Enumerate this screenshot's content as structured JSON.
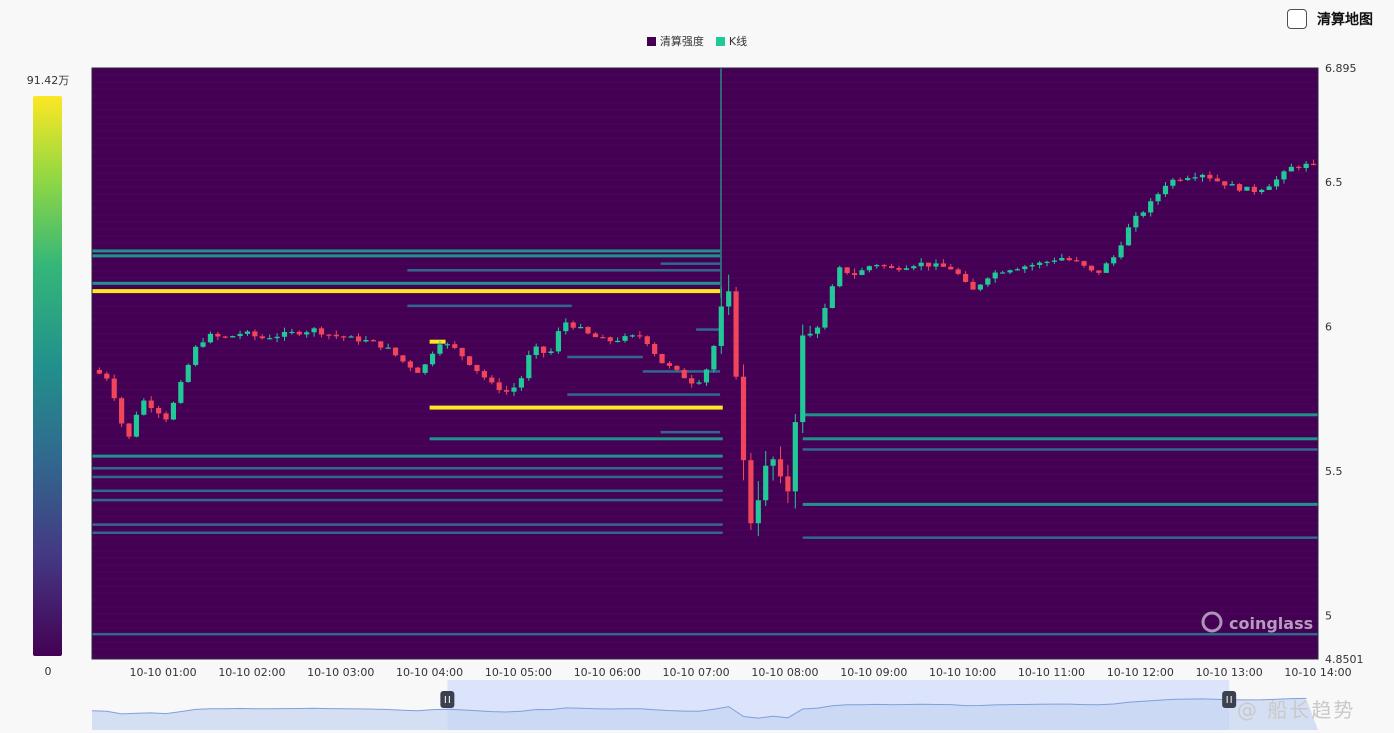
{
  "toggle": {
    "label": "清算地图",
    "checked": false
  },
  "colorbar": {
    "max_label": "91.42万",
    "min_label": "0"
  },
  "watermark": {
    "brand": "coinglass",
    "overlay_text": "@ 船长趋势"
  },
  "colors": {
    "heatmap_bg": "#440154",
    "up": "#20c997",
    "down": "#f0455a",
    "level_low": "#31688e",
    "level_mid": "#21918c",
    "level_high": "#fde725"
  },
  "chart_data": {
    "type": "heatmap",
    "legend": [
      "清算强度",
      "K线"
    ],
    "legend_colors": [
      "#440154",
      "#20c997"
    ],
    "y_ticks": [
      "6.895",
      "6.5",
      "6",
      "5.5",
      "5",
      "4.8501"
    ],
    "ylim": [
      4.8501,
      6.895
    ],
    "x_ticks": [
      "10-10 01:00",
      "10-10 02:00",
      "10-10 03:00",
      "10-10 04:00",
      "10-10 05:00",
      "10-10 06:00",
      "10-10 07:00",
      "10-10 08:00",
      "10-10 09:00",
      "10-10 10:00",
      "10-10 11:00",
      "10-10 12:00",
      "10-10 13:00",
      "10-10 14:00"
    ],
    "x_start_hour": 0.2,
    "x_end_hour": 14.0,
    "candle_interval_minutes": 5,
    "colorbar_range": [
      0,
      914200
    ],
    "candle_close_path": [
      [
        0.2,
        5.85
      ],
      [
        0.4,
        5.82
      ],
      [
        0.5,
        5.7
      ],
      [
        0.6,
        5.6
      ],
      [
        0.75,
        5.75
      ],
      [
        0.9,
        5.72
      ],
      [
        1.05,
        5.68
      ],
      [
        1.2,
        5.8
      ],
      [
        1.35,
        5.92
      ],
      [
        1.5,
        5.97
      ],
      [
        1.7,
        5.96
      ],
      [
        1.9,
        5.98
      ],
      [
        2.1,
        5.96
      ],
      [
        2.3,
        5.97
      ],
      [
        2.5,
        5.98
      ],
      [
        2.7,
        5.99
      ],
      [
        2.9,
        5.97
      ],
      [
        3.1,
        5.96
      ],
      [
        3.3,
        5.95
      ],
      [
        3.5,
        5.93
      ],
      [
        3.7,
        5.88
      ],
      [
        3.9,
        5.84
      ],
      [
        4.1,
        5.95
      ],
      [
        4.3,
        5.92
      ],
      [
        4.5,
        5.86
      ],
      [
        4.7,
        5.8
      ],
      [
        4.9,
        5.77
      ],
      [
        5.05,
        5.83
      ],
      [
        5.15,
        5.93
      ],
      [
        5.35,
        5.9
      ],
      [
        5.5,
        6.02
      ],
      [
        5.65,
        6.0
      ],
      [
        5.8,
        5.97
      ],
      [
        6.0,
        5.95
      ],
      [
        6.2,
        5.96
      ],
      [
        6.4,
        5.97
      ],
      [
        6.6,
        5.88
      ],
      [
        6.8,
        5.84
      ],
      [
        7.0,
        5.8
      ],
      [
        7.15,
        5.87
      ],
      [
        7.3,
        6.06
      ],
      [
        7.4,
        6.1
      ],
      [
        7.5,
        5.62
      ],
      [
        7.6,
        5.32
      ],
      [
        7.75,
        5.48
      ],
      [
        7.9,
        5.55
      ],
      [
        8.0,
        5.34
      ],
      [
        8.1,
        5.65
      ],
      [
        8.2,
        5.95
      ],
      [
        8.3,
        5.97
      ],
      [
        8.4,
        6.02
      ],
      [
        8.5,
        6.1
      ],
      [
        8.6,
        6.2
      ],
      [
        8.8,
        6.18
      ],
      [
        9.0,
        6.22
      ],
      [
        9.2,
        6.2
      ],
      [
        9.5,
        6.22
      ],
      [
        9.7,
        6.21
      ],
      [
        9.9,
        6.2
      ],
      [
        10.1,
        6.12
      ],
      [
        10.3,
        6.18
      ],
      [
        10.5,
        6.2
      ],
      [
        10.7,
        6.21
      ],
      [
        10.9,
        6.22
      ],
      [
        11.1,
        6.24
      ],
      [
        11.3,
        6.22
      ],
      [
        11.5,
        6.18
      ],
      [
        11.7,
        6.24
      ],
      [
        11.9,
        6.36
      ],
      [
        12.1,
        6.42
      ],
      [
        12.3,
        6.5
      ],
      [
        12.5,
        6.52
      ],
      [
        12.7,
        6.53
      ],
      [
        12.9,
        6.5
      ],
      [
        13.1,
        6.48
      ],
      [
        13.3,
        6.47
      ],
      [
        13.5,
        6.5
      ],
      [
        13.7,
        6.55
      ],
      [
        13.85,
        6.56
      ],
      [
        14.0,
        6.55
      ]
    ],
    "liquidation_levels": [
      {
        "price": 6.245,
        "x0": 0.2,
        "x1": 7.27,
        "intensity": 0.45
      },
      {
        "price": 6.262,
        "x0": 0.2,
        "x1": 7.27,
        "intensity": 0.4
      },
      {
        "price": 6.195,
        "x0": 3.75,
        "x1": 7.27,
        "intensity": 0.28
      },
      {
        "price": 6.218,
        "x0": 6.6,
        "x1": 7.27,
        "intensity": 0.25
      },
      {
        "price": 6.15,
        "x0": 0.2,
        "x1": 7.27,
        "intensity": 0.5
      },
      {
        "price": 6.123,
        "x0": 0.2,
        "x1": 7.27,
        "intensity": 1.0
      },
      {
        "price": 6.072,
        "x0": 3.75,
        "x1": 5.6,
        "intensity": 0.32
      },
      {
        "price": 5.99,
        "x0": 7.0,
        "x1": 7.3,
        "intensity": 0.35
      },
      {
        "price": 5.948,
        "x0": 4.0,
        "x1": 4.18,
        "intensity": 1.0
      },
      {
        "price": 5.895,
        "x0": 5.55,
        "x1": 6.4,
        "intensity": 0.35
      },
      {
        "price": 5.845,
        "x0": 6.4,
        "x1": 7.27,
        "intensity": 0.32
      },
      {
        "price": 5.765,
        "x0": 5.55,
        "x1": 7.27,
        "intensity": 0.28
      },
      {
        "price": 5.72,
        "x0": 4.0,
        "x1": 7.3,
        "intensity": 1.0
      },
      {
        "price": 5.635,
        "x0": 6.6,
        "x1": 7.27,
        "intensity": 0.3
      },
      {
        "price": 5.612,
        "x0": 4.0,
        "x1": 7.3,
        "intensity": 0.4
      },
      {
        "price": 5.552,
        "x0": 0.2,
        "x1": 7.3,
        "intensity": 0.4
      },
      {
        "price": 5.51,
        "x0": 0.2,
        "x1": 7.3,
        "intensity": 0.35
      },
      {
        "price": 5.48,
        "x0": 0.2,
        "x1": 7.3,
        "intensity": 0.32
      },
      {
        "price": 5.432,
        "x0": 0.2,
        "x1": 7.3,
        "intensity": 0.3
      },
      {
        "price": 5.4,
        "x0": 0.2,
        "x1": 7.3,
        "intensity": 0.28
      },
      {
        "price": 5.315,
        "x0": 0.2,
        "x1": 7.3,
        "intensity": 0.28
      },
      {
        "price": 5.287,
        "x0": 0.2,
        "x1": 7.3,
        "intensity": 0.3
      },
      {
        "price": 5.695,
        "x0": 8.2,
        "x1": 14.0,
        "intensity": 0.42
      },
      {
        "price": 5.612,
        "x0": 8.2,
        "x1": 14.0,
        "intensity": 0.38
      },
      {
        "price": 5.575,
        "x0": 8.2,
        "x1": 14.0,
        "intensity": 0.32
      },
      {
        "price": 5.385,
        "x0": 8.2,
        "x1": 14.0,
        "intensity": 0.42
      },
      {
        "price": 5.27,
        "x0": 8.2,
        "x1": 14.0,
        "intensity": 0.3
      },
      {
        "price": 4.936,
        "x0": 0.2,
        "x1": 14.0,
        "intensity": 0.35
      }
    ]
  }
}
